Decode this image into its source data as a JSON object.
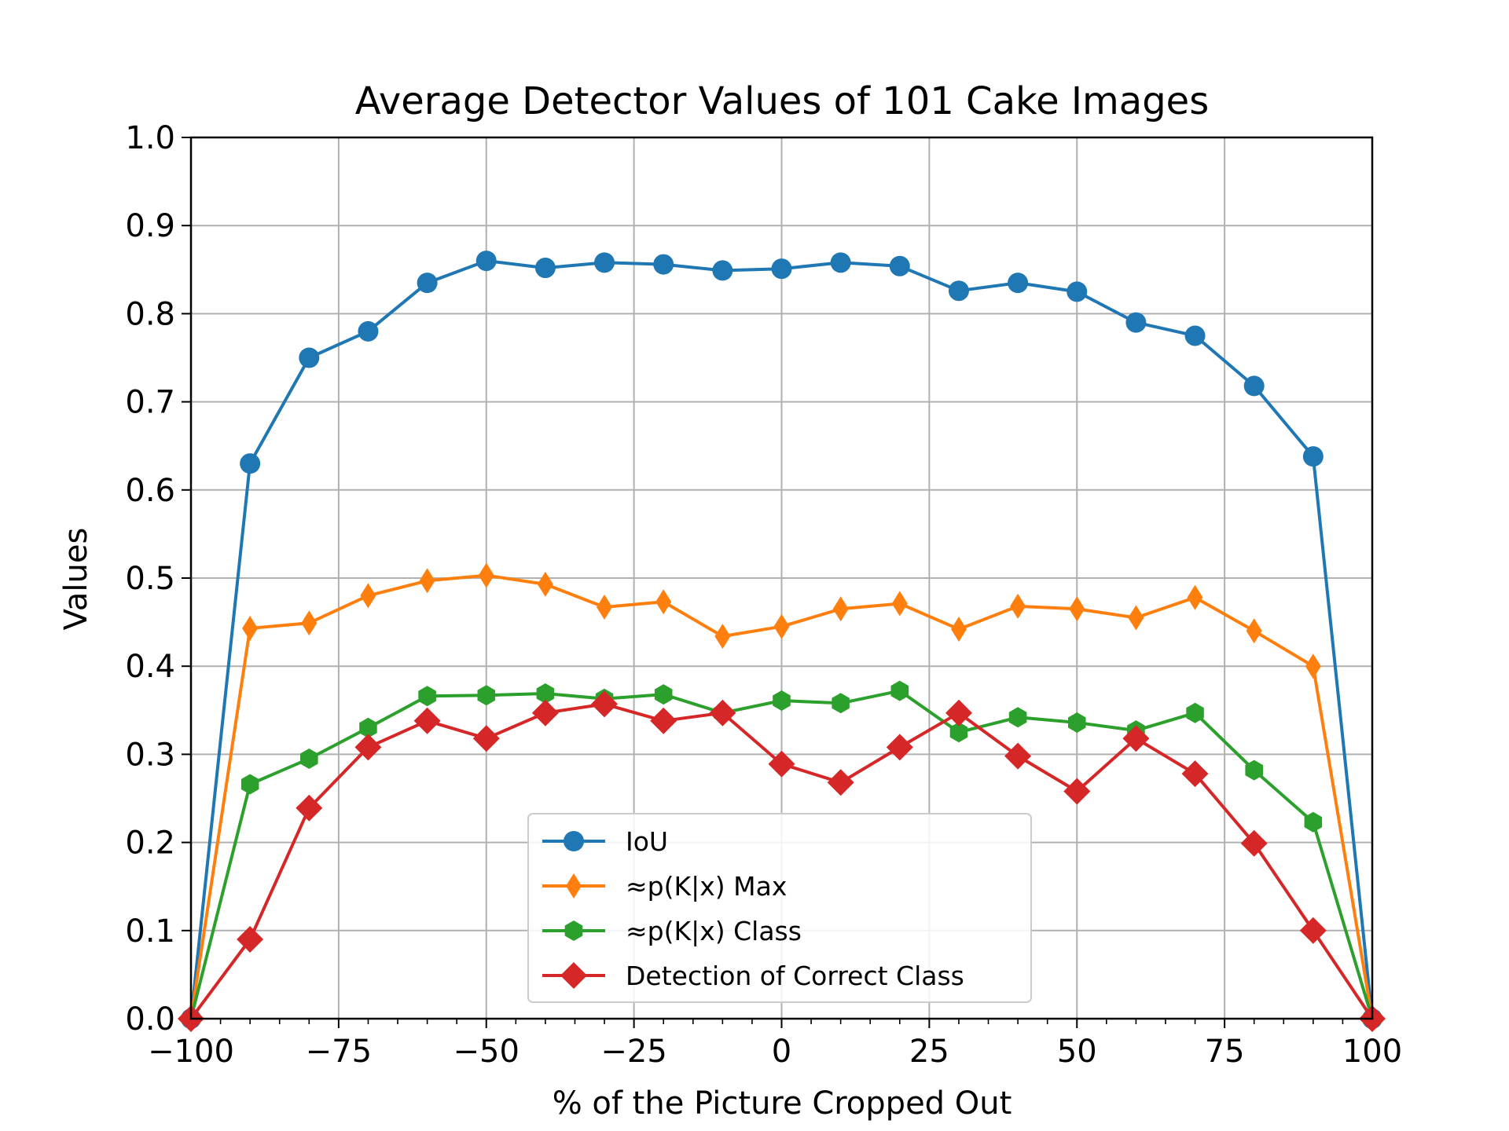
{
  "chart_data": {
    "type": "line",
    "title": "Average Detector Values of 101 Cake Images",
    "xlabel": "% of the Picture Cropped Out",
    "ylabel": "Values",
    "xlim": [
      -100,
      100
    ],
    "ylim": [
      0,
      1
    ],
    "grid": true,
    "legend_position": "lower-center",
    "x": [
      -100,
      -90,
      -80,
      -70,
      -60,
      -50,
      -40,
      -30,
      -20,
      -10,
      0,
      10,
      20,
      30,
      40,
      50,
      60,
      70,
      80,
      90,
      100
    ],
    "x_ticks": [
      -100,
      -75,
      -50,
      -25,
      0,
      25,
      50,
      75,
      100
    ],
    "x_tick_labels": [
      "−100",
      "−75",
      "−50",
      "−25",
      "0",
      "25",
      "50",
      "75",
      "100"
    ],
    "y_ticks": [
      0,
      0.1,
      0.2,
      0.3,
      0.4,
      0.5,
      0.6,
      0.7,
      0.8,
      0.9,
      1.0
    ],
    "y_tick_labels": [
      "0.0",
      "0.1",
      "0.2",
      "0.3",
      "0.4",
      "0.5",
      "0.6",
      "0.7",
      "0.8",
      "0.9",
      "1.0"
    ],
    "series": [
      {
        "name": "IoU",
        "color": "#1f77b4",
        "marker": "circle",
        "values": [
          0.0,
          0.63,
          0.75,
          0.78,
          0.835,
          0.86,
          0.852,
          0.858,
          0.856,
          0.849,
          0.851,
          0.858,
          0.854,
          0.826,
          0.835,
          0.825,
          0.79,
          0.775,
          0.718,
          0.638,
          0.0
        ]
      },
      {
        "name": "≈p(K|x) Max",
        "color": "#ff7f0e",
        "marker": "thin-diamond",
        "values": [
          0.0,
          0.443,
          0.449,
          0.48,
          0.497,
          0.503,
          0.493,
          0.467,
          0.473,
          0.434,
          0.445,
          0.465,
          0.471,
          0.442,
          0.468,
          0.465,
          0.455,
          0.478,
          0.44,
          0.4,
          0.0
        ]
      },
      {
        "name": "≈p(K|x) Class",
        "color": "#2ca02c",
        "marker": "hexagon",
        "values": [
          0.0,
          0.266,
          0.295,
          0.33,
          0.366,
          0.367,
          0.369,
          0.363,
          0.368,
          0.347,
          0.361,
          0.358,
          0.372,
          0.325,
          0.342,
          0.336,
          0.327,
          0.347,
          0.282,
          0.223,
          0.0
        ]
      },
      {
        "name": "Detection of Correct Class",
        "color": "#d62728",
        "marker": "diamond",
        "values": [
          0.0,
          0.09,
          0.239,
          0.308,
          0.338,
          0.318,
          0.347,
          0.357,
          0.338,
          0.347,
          0.289,
          0.268,
          0.308,
          0.347,
          0.298,
          0.258,
          0.318,
          0.278,
          0.199,
          0.1,
          0.0
        ]
      }
    ]
  }
}
